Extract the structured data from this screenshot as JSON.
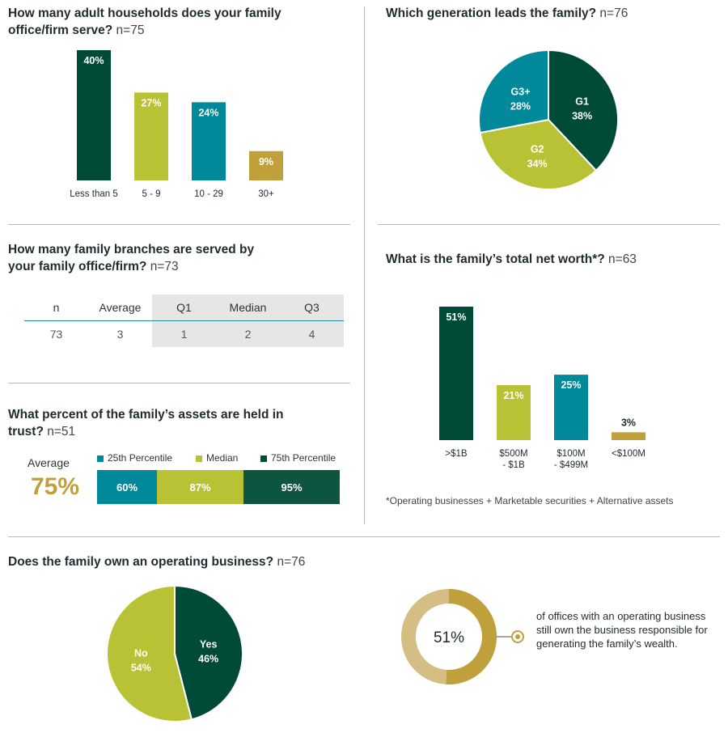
{
  "colors": {
    "dark_green": "#004b38",
    "lime": "#b9c234",
    "teal": "#00899a",
    "gold": "#c0a03a",
    "tan": "#d4be84"
  },
  "households": {
    "question": "How many adult households does your family office/firm serve?",
    "n": "n=75"
  },
  "generation": {
    "question": "Which generation leads the family?",
    "n": "n=76"
  },
  "branches": {
    "question": "How many family branches are served by your family office/firm?",
    "n": "n=73",
    "headers": [
      "n",
      "Average",
      "Q1",
      "Median",
      "Q3"
    ],
    "values": [
      "73",
      "3",
      "1",
      "2",
      "4"
    ]
  },
  "networth": {
    "question": "What is the family’s total net worth*?",
    "n": "n=63",
    "footnote": "*Operating businesses + Marketable securities + Alternative assets"
  },
  "trust": {
    "question": "What percent of the family’s assets are held in trust?",
    "n": "n=51",
    "average_label": "Average",
    "average_value": "75%",
    "legend": [
      "25th Percentile",
      "Median",
      "75th Percentile"
    ]
  },
  "operating": {
    "question": "Does the family own an operating business?",
    "n": "n=76",
    "donut_value": "51%",
    "callout": "of offices with an operating business still own the business responsible for generating the family’s wealth."
  },
  "chart_data": [
    {
      "type": "bar",
      "categories": [
        "Less than 5",
        "5 - 9",
        "10 - 29",
        "30+"
      ],
      "values": [
        40,
        27,
        24,
        9
      ],
      "value_labels": [
        "40%",
        "27%",
        "24%",
        "9%"
      ],
      "ylim": [
        0,
        40
      ]
    },
    {
      "type": "pie",
      "labels": [
        "G1",
        "G2",
        "G3+"
      ],
      "values": [
        38,
        34,
        28
      ],
      "value_labels": [
        "38%",
        "34%",
        "28%"
      ]
    },
    {
      "type": "bar",
      "categories": [
        ">$1B",
        "$500M - $1B",
        "$100M - $499M",
        "<$100M"
      ],
      "category_lines": [
        [
          ">$1B"
        ],
        [
          "$500M",
          "- $1B"
        ],
        [
          "$100M",
          "- $499M"
        ],
        [
          "<$100M"
        ]
      ],
      "values": [
        51,
        21,
        25,
        3
      ],
      "value_labels": [
        "51%",
        "21%",
        "25%",
        "3%"
      ],
      "ylim": [
        0,
        51
      ]
    },
    {
      "type": "bar",
      "orientation": "horizontal-stacked",
      "categories": [
        "25th Percentile",
        "Median",
        "75th Percentile"
      ],
      "values": [
        60,
        87,
        95
      ],
      "value_labels": [
        "60%",
        "87%",
        "95%"
      ]
    },
    {
      "type": "pie",
      "labels": [
        "Yes",
        "No"
      ],
      "values": [
        46,
        54
      ],
      "value_labels": [
        "46%",
        "54%"
      ]
    },
    {
      "type": "pie",
      "variant": "donut",
      "values": [
        51,
        49
      ],
      "value_labels": [
        "51%"
      ]
    }
  ]
}
